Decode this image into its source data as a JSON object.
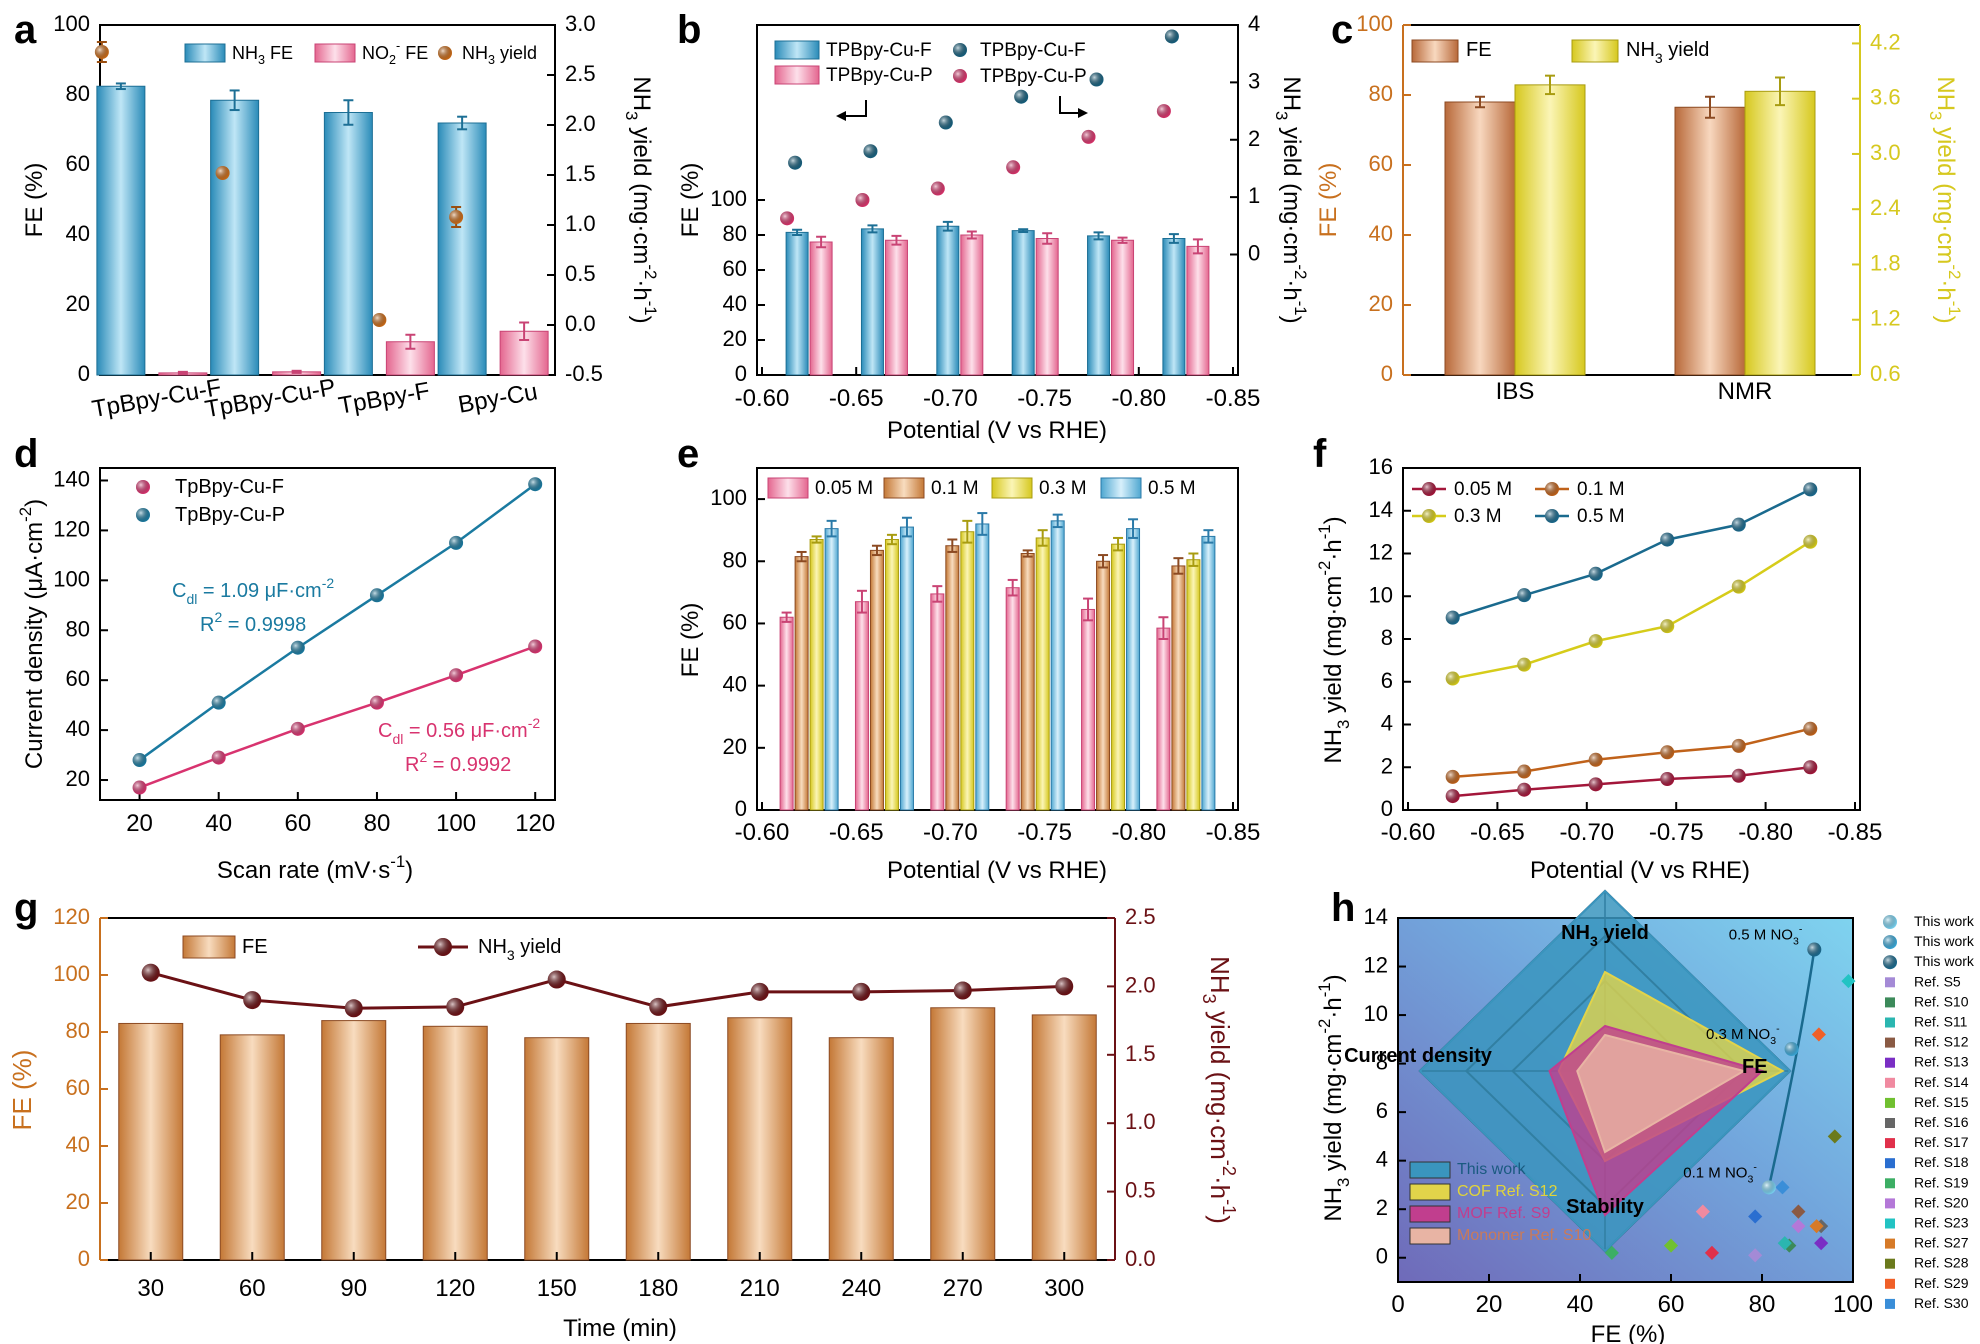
{
  "panel_letters": [
    "a",
    "b",
    "c",
    "d",
    "e",
    "f",
    "g",
    "h"
  ],
  "chart_data": [
    {
      "panel": "a",
      "type": "bar",
      "categories": [
        "TpBpy-Cu-F",
        "TpBpy-Cu-P",
        "TpBpy-F",
        "Bpy-Cu"
      ],
      "ylabel": "FE (%)",
      "ylim": [
        0,
        100
      ],
      "yticks": [
        "0",
        "20",
        "40",
        "60",
        "80",
        "100"
      ],
      "y2label": "NH3 yield (mg·cm-2·h-1)",
      "y2lim": [
        -0.5,
        3.0
      ],
      "y2ticks": [
        "-0.5",
        "0.0",
        "0.5",
        "1.0",
        "1.5",
        "2.0",
        "2.5",
        "3.0"
      ],
      "series": [
        {
          "name": "NH3 FE",
          "values": [
            82.5,
            78.5,
            75,
            72
          ],
          "errors": [
            0.8,
            2.8,
            3.5,
            1.8
          ],
          "color": "#2a8bb8"
        },
        {
          "name": "NO2- FE",
          "values": [
            0.6,
            0.9,
            9.5,
            12.5
          ],
          "errors": [
            0.3,
            0.3,
            2,
            2.5
          ],
          "color": "#e4668f"
        },
        {
          "name": "NH3 yield",
          "values": [
            2.73,
            1.52,
            0.05,
            1.08
          ],
          "errors": [
            0.1,
            0.03,
            0.02,
            0.1
          ],
          "color": "#c96a17",
          "axis": "right"
        }
      ],
      "legend": "top"
    },
    {
      "panel": "b",
      "type": "bar",
      "x_label": "Potential (V vs RHE)",
      "categories": [
        "-0.60",
        "-0.65",
        "-0.70",
        "-0.75",
        "-0.80",
        "-0.85"
      ],
      "x": [
        -0.625,
        -0.665,
        -0.705,
        -0.745,
        -0.785,
        -0.825
      ],
      "xlim": [
        -0.6,
        -0.85
      ],
      "ylabel": "FE (%)",
      "ylim": [
        0,
        100
      ],
      "yticks": [
        "0",
        "20",
        "40",
        "60",
        "80",
        "100"
      ],
      "y2label": "NH3 yield (mg·cm-2·h-1)",
      "y2lim": [
        -2.1,
        4
      ],
      "y2ticks": [
        "0",
        "1",
        "2",
        "3",
        "4"
      ],
      "series": [
        {
          "name": "TPBpy-Cu-F",
          "kind": "bar",
          "values": [
            81.5,
            83.5,
            85,
            82.5,
            79.5,
            78
          ],
          "errors": [
            1.5,
            2,
            2.5,
            0.8,
            2,
            2.5
          ],
          "color": "#2a8bb8"
        },
        {
          "name": "TPBpy-Cu-P",
          "kind": "bar",
          "values": [
            76,
            77,
            80,
            78,
            77,
            73.5
          ],
          "errors": [
            3,
            2.5,
            2,
            3,
            1.5,
            4
          ],
          "color": "#e4668f"
        },
        {
          "name": "TPBpy-Cu-F",
          "kind": "point",
          "values": [
            1.6,
            1.8,
            2.3,
            2.75,
            3.05,
            3.8
          ],
          "errors": [
            0.08,
            0.08,
            0.05,
            0.1,
            0.1,
            0.05
          ],
          "color": "#17607e"
        },
        {
          "name": "TPBpy-Cu-P",
          "kind": "point",
          "values": [
            0.63,
            0.95,
            1.15,
            1.52,
            2.05,
            2.5
          ],
          "errors": [
            0.05,
            0.05,
            0.05,
            0.05,
            0.05,
            0.1
          ],
          "color": "#d9336b"
        }
      ]
    },
    {
      "panel": "c",
      "type": "bar",
      "categories": [
        "IBS",
        "NMR"
      ],
      "ylabel": "FE (%)",
      "ylim": [
        0,
        100
      ],
      "yticks": [
        "0",
        "20",
        "40",
        "60",
        "80",
        "100"
      ],
      "y2label": "NH3 yield (mg·cm-2·h-1)",
      "y2lim": [
        0.6,
        4.4
      ],
      "y2ticks": [
        "0.6",
        "1.2",
        "1.8",
        "2.4",
        "3.0",
        "3.6",
        "4.2"
      ],
      "series": [
        {
          "name": "FE",
          "values": [
            78,
            76.5
          ],
          "errors": [
            1.5,
            3
          ],
          "color": "#b8693a",
          "axis": "left"
        },
        {
          "name": "NH3 yield",
          "values": [
            3.75,
            3.68
          ],
          "errors": [
            0.1,
            0.15
          ],
          "color": "#e0d43a",
          "axis": "right"
        }
      ]
    },
    {
      "panel": "d",
      "type": "line",
      "xlabel": "Scan rate (mV·s-1)",
      "ylabel": "Current density (μA·cm-2)",
      "x": [
        20,
        40,
        60,
        80,
        100,
        120
      ],
      "xlim": [
        10,
        125
      ],
      "ylim": [
        12,
        145
      ],
      "xticks": [
        "20",
        "40",
        "60",
        "80",
        "100",
        "120"
      ],
      "yticks": [
        "20",
        "40",
        "60",
        "80",
        "100",
        "120",
        "140"
      ],
      "series": [
        {
          "name": "TpBpy-Cu-F",
          "values": [
            17,
            29,
            40.5,
            51,
            62,
            73.5
          ],
          "color": "#d8336f"
        },
        {
          "name": "TpBpy-Cu-P",
          "values": [
            28,
            51,
            73,
            94,
            115,
            138.5
          ],
          "color": "#1a7aa0"
        }
      ],
      "annotations": [
        {
          "text": "Cdl = 1.09 μF·cm-2",
          "color": "#1a7aa0"
        },
        {
          "text": "R2 = 0.9998",
          "color": "#1a7aa0"
        },
        {
          "text": "Cdl = 0.56 μF·cm-2",
          "color": "#d8336f"
        },
        {
          "text": "R2 = 0.9992",
          "color": "#d8336f"
        }
      ]
    },
    {
      "panel": "e",
      "type": "bar",
      "xlabel": "Potential (V vs RHE)",
      "ylabel": "FE (%)",
      "categories": [
        "-0.60",
        "-0.65",
        "-0.70",
        "-0.75",
        "-0.80",
        "-0.85"
      ],
      "ylim": [
        0,
        110
      ],
      "yticks": [
        "0",
        "20",
        "40",
        "60",
        "80",
        "100"
      ],
      "series": [
        {
          "name": "0.05 M",
          "values": [
            62,
            67,
            69.5,
            71.5,
            64.5,
            58.5
          ],
          "errors": [
            1.5,
            3.5,
            2.5,
            2.5,
            3.5,
            3.5
          ],
          "color": "#e4668f"
        },
        {
          "name": "0.1 M",
          "values": [
            81.5,
            83.5,
            85,
            82.5,
            80,
            78.5
          ],
          "errors": [
            1.5,
            1.5,
            2,
            1,
            2,
            2.5
          ],
          "color": "#c47836"
        },
        {
          "name": "0.3 M",
          "values": [
            87,
            87,
            89.5,
            87.5,
            85.5,
            80.5
          ],
          "errors": [
            1,
            1.5,
            3.5,
            2.5,
            2,
            2
          ],
          "color": "#e0d43a"
        },
        {
          "name": "0.5 M",
          "values": [
            90.5,
            91,
            92,
            93,
            90.5,
            88
          ],
          "errors": [
            2.5,
            3,
            3.5,
            2,
            3,
            2
          ],
          "color": "#4fa7d1"
        }
      ]
    },
    {
      "panel": "f",
      "type": "line",
      "xlabel": "Potential (V vs RHE)",
      "ylabel": "NH3 yield (mg·cm-2·h-1)",
      "x": [
        -0.625,
        -0.665,
        -0.705,
        -0.745,
        -0.785,
        -0.825
      ],
      "xlim": [
        -0.6,
        -0.85
      ],
      "ylim": [
        0,
        16
      ],
      "xticks": [
        "-0.60",
        "-0.65",
        "-0.70",
        "-0.75",
        "-0.80",
        "-0.85"
      ],
      "yticks": [
        "0",
        "2",
        "4",
        "6",
        "8",
        "10",
        "12",
        "14",
        "16"
      ],
      "series": [
        {
          "name": "0.05 M",
          "values": [
            0.65,
            0.95,
            1.2,
            1.45,
            1.6,
            2.0
          ],
          "color": "#a3163a"
        },
        {
          "name": "0.1 M",
          "values": [
            1.55,
            1.8,
            2.35,
            2.7,
            3.0,
            3.8
          ],
          "color": "#c0621a"
        },
        {
          "name": "0.3 M",
          "values": [
            6.15,
            6.8,
            7.9,
            8.6,
            10.45,
            12.55
          ],
          "color": "#d6cc1a"
        },
        {
          "name": "0.5 M",
          "values": [
            9.0,
            10.05,
            11.05,
            12.65,
            13.35,
            15.0
          ],
          "color": "#1a6a8e"
        }
      ]
    },
    {
      "panel": "g",
      "type": "bar",
      "xlabel": "Time (min)",
      "ylabel": "FE (%)",
      "y2label": "NH3 yield (mg·cm-2·h-1)",
      "categories": [
        "30",
        "60",
        "90",
        "120",
        "150",
        "180",
        "210",
        "240",
        "270",
        "300"
      ],
      "ylim": [
        0,
        120
      ],
      "yticks": [
        "0",
        "20",
        "40",
        "60",
        "80",
        "100",
        "120"
      ],
      "y2lim": [
        0,
        2.5
      ],
      "y2ticks": [
        "0.0",
        "0.5",
        "1.0",
        "1.5",
        "2.0",
        "2.5"
      ],
      "series": [
        {
          "name": "FE",
          "kind": "bar",
          "values": [
            83,
            79,
            84,
            82,
            78,
            83,
            85,
            78,
            88.5,
            86
          ],
          "color": "#c47836"
        },
        {
          "name": "NH3 yield",
          "kind": "line",
          "values": [
            2.1,
            1.9,
            1.84,
            1.85,
            2.05,
            1.85,
            1.96,
            1.96,
            1.97,
            2.0
          ],
          "color": "#6b1115"
        }
      ]
    },
    {
      "panel": "h",
      "type": "scatter",
      "xlabel": "FE (%)",
      "ylabel": "NH3 yield (mg·cm-2·h-1)",
      "xlim": [
        0,
        100
      ],
      "ylim": [
        -1,
        14
      ],
      "xticks": [
        "0",
        "20",
        "40",
        "60",
        "80",
        "100"
      ],
      "yticks": [
        "0",
        "2",
        "4",
        "6",
        "8",
        "10",
        "12",
        "14"
      ],
      "this_work": [
        {
          "label": "0.1 M NO3-",
          "x": 81.5,
          "y": 2.9
        },
        {
          "label": "0.3 M NO3-",
          "x": 86.5,
          "y": 8.6
        },
        {
          "label": "0.5 M NO3-",
          "x": 91.5,
          "y": 12.7
        }
      ],
      "refs": [
        {
          "name": "Ref. S5",
          "x": 78.5,
          "y": 0.1,
          "color": "#a48ad6"
        },
        {
          "name": "Ref. S10",
          "x": 86,
          "y": 0.5,
          "color": "#3c8a5a"
        },
        {
          "name": "Ref. S11",
          "x": 85,
          "y": 0.6,
          "color": "#2bb6b0"
        },
        {
          "name": "Ref. S12",
          "x": 88,
          "y": 1.9,
          "color": "#8a5a44"
        },
        {
          "name": "Ref. S13",
          "x": 93,
          "y": 0.6,
          "color": "#7a2ec4"
        },
        {
          "name": "Ref. S14",
          "x": 67,
          "y": 1.9,
          "color": "#f08aa0"
        },
        {
          "name": "Ref. S15",
          "x": 60,
          "y": 0.5,
          "color": "#70c030"
        },
        {
          "name": "Ref. S16",
          "x": 93,
          "y": 1.3,
          "color": "#666666"
        },
        {
          "name": "Ref. S17",
          "x": 69,
          "y": 0.2,
          "color": "#e0304a"
        },
        {
          "name": "Ref. S18",
          "x": 78.5,
          "y": 1.7,
          "color": "#2a6ed0"
        },
        {
          "name": "Ref. S19",
          "x": 47,
          "y": 0.2,
          "color": "#3cae64"
        },
        {
          "name": "Ref. S20",
          "x": 88,
          "y": 1.3,
          "color": "#b478d8"
        },
        {
          "name": "Ref. S23",
          "x": 99,
          "y": 11.4,
          "color": "#22c3c3"
        },
        {
          "name": "Ref. S27",
          "x": 92,
          "y": 1.3,
          "color": "#d67a28"
        },
        {
          "name": "Ref. S28",
          "x": 96,
          "y": 5.0,
          "color": "#6b7a1c"
        },
        {
          "name": "Ref. S29",
          "x": 92.5,
          "y": 9.2,
          "color": "#f06028"
        },
        {
          "name": "Ref. S30",
          "x": 84.5,
          "y": 2.9,
          "color": "#3a8ed8"
        }
      ],
      "legend_entries": [
        "This work",
        "This work",
        "This work",
        "Ref. S5",
        "Ref. S10",
        "Ref. S11",
        "Ref. S12",
        "Ref. S13",
        "Ref. S14",
        "Ref. S15",
        "Ref. S16",
        "Ref. S17",
        "Ref. S18",
        "Ref. S19",
        "Ref. S20",
        "Ref. S23",
        "Ref. S27",
        "Ref. S28",
        "Ref. S29",
        "Ref. S30"
      ],
      "radar": {
        "axes": [
          "NH3 yield",
          "FE",
          "Stability",
          "Current density"
        ],
        "series": [
          {
            "name": "This work",
            "values": [
              1.0,
              1.0,
              1.0,
              1.0
            ],
            "color": "#3a95be"
          },
          {
            "name": "COF Ref. S12",
            "values": [
              0.55,
              0.96,
              0.5,
              0.25
            ],
            "color": "#e2d44a"
          },
          {
            "name": "MOF Ref. S9",
            "values": [
              0.25,
              0.85,
              0.8,
              0.3
            ],
            "color": "#c13e8e"
          },
          {
            "name": "Monomer Ref. S10",
            "values": [
              0.2,
              0.75,
              0.45,
              0.15
            ],
            "color": "#e8b4a4"
          }
        ]
      }
    }
  ]
}
